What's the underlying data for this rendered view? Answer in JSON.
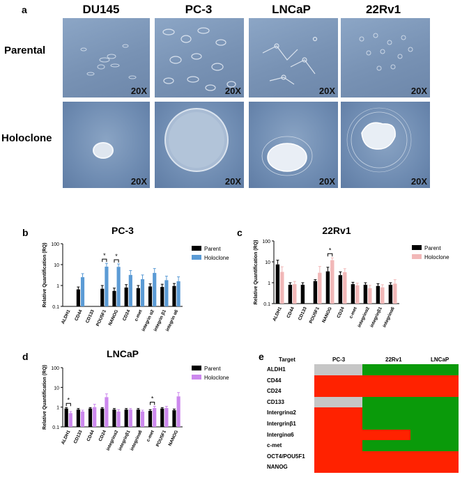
{
  "panel_a": {
    "letter": "a",
    "columns": [
      "DU145",
      "PC-3",
      "LNCaP",
      "22Rv1"
    ],
    "rows": [
      "Parental",
      "Holoclone"
    ],
    "magnification": "20X"
  },
  "panel_b": {
    "letter": "b"
  },
  "panel_c": {
    "letter": "c"
  },
  "panel_d": {
    "letter": "d"
  },
  "panel_e": {
    "letter": "e",
    "header": [
      "Target",
      "PC-3",
      "22Rv1",
      "LNCaP"
    ],
    "colors": {
      "red": "#ff2200",
      "green": "#0a9a0a",
      "gray": "#c6c6c6"
    },
    "rows": [
      {
        "label": "ALDH1",
        "cells": [
          "gray",
          "green",
          "green"
        ]
      },
      {
        "label": "CD44",
        "cells": [
          "red",
          "red",
          "red"
        ]
      },
      {
        "label": "CD24",
        "cells": [
          "red",
          "red",
          "red"
        ]
      },
      {
        "label": "CD133",
        "cells": [
          "gray",
          "green",
          "green"
        ]
      },
      {
        "label": "Intergrinα2",
        "cells": [
          "red",
          "green",
          "green"
        ]
      },
      {
        "label": "Intergrinβ1",
        "cells": [
          "red",
          "green",
          "green"
        ]
      },
      {
        "label": "Interginα6",
        "cells": [
          "red",
          "red",
          "green"
        ]
      },
      {
        "label": "c-met",
        "cells": [
          "red",
          "green",
          "green"
        ]
      },
      {
        "label": "OCT4/POU5F1",
        "cells": [
          "red",
          "red",
          "red"
        ]
      },
      {
        "label": "NANOG",
        "cells": [
          "red",
          "red",
          "red"
        ]
      }
    ]
  },
  "chart_data": [
    {
      "type": "bar",
      "title": "PC-3",
      "ylabel": "Relative Quantification (RQ)",
      "yscale": "log",
      "ylim": [
        0.1,
        100
      ],
      "yticks": [
        "0.1",
        "1",
        "10",
        "100"
      ],
      "categories": [
        "ALDH1",
        "CD44",
        "CD133",
        "POU5F1",
        "NANOG",
        "CD24",
        "c-met",
        "integrin α2",
        "integrin β1",
        "integrin α6"
      ],
      "series": [
        {
          "name": "Parent",
          "color": "#000000",
          "values": [
            null,
            0.65,
            null,
            0.7,
            0.55,
            0.8,
            0.75,
            0.9,
            0.85,
            0.95
          ],
          "errors": [
            null,
            0.2,
            null,
            0.3,
            0.2,
            0.3,
            0.25,
            0.3,
            0.3,
            0.3
          ]
        },
        {
          "name": "Holoclone",
          "color": "#5b9bd5",
          "values": [
            null,
            2.5,
            null,
            8.0,
            7.8,
            3.2,
            2.0,
            4.0,
            1.8,
            1.6
          ],
          "errors": [
            null,
            1.2,
            null,
            3.5,
            3.0,
            2.0,
            1.2,
            2.5,
            1.0,
            1.0
          ]
        }
      ],
      "significance": [
        {
          "category": "POU5F1",
          "label": "*"
        },
        {
          "category": "NANOG",
          "label": "*"
        }
      ],
      "legend": "top-right"
    },
    {
      "type": "bar",
      "title": "22Rv1",
      "ylabel": "Relative Quantification (RQ)",
      "yscale": "log",
      "ylim": [
        0.1,
        100
      ],
      "yticks": [
        "0.1",
        "1",
        "10",
        "100"
      ],
      "categories": [
        "ALDH1",
        "CD44",
        "CD133",
        "POU5F1",
        "NANOG",
        "CD24",
        "c-met",
        "integrinα2",
        "integrinβ1",
        "integrinα6"
      ],
      "series": [
        {
          "name": "Parent",
          "color": "#000000",
          "values": [
            7.5,
            0.8,
            0.8,
            1.2,
            3.5,
            2.3,
            0.85,
            0.8,
            0.7,
            0.8
          ],
          "errors": [
            4.5,
            0.2,
            0.2,
            0.2,
            2.0,
            1.0,
            0.2,
            0.2,
            0.2,
            0.2
          ]
        },
        {
          "name": "Holoclone",
          "color": "#f2b8b8",
          "values": [
            3.3,
            0.85,
            null,
            3.0,
            12.0,
            3.2,
            0.75,
            0.55,
            0.6,
            0.9
          ],
          "errors": [
            2.5,
            0.3,
            null,
            3.0,
            3.5,
            1.5,
            0.2,
            0.2,
            0.2,
            0.5
          ]
        }
      ],
      "significance": [
        {
          "category": "NANOG",
          "label": "*"
        }
      ],
      "legend": "top-right"
    },
    {
      "type": "bar",
      "title": "LNCaP",
      "ylabel": "Relative Quantification (RQ)",
      "yscale": "log",
      "ylim": [
        0.1,
        100
      ],
      "yticks": [
        "0.1",
        "1",
        "10",
        "100"
      ],
      "categories": [
        "ALDH1",
        "CD133",
        "CD44",
        "CD24",
        "integrinα2",
        "integrinβ1",
        "integrinα6",
        "c-met",
        "POU5F1",
        "NANOG"
      ],
      "series": [
        {
          "name": "Parent",
          "color": "#000000",
          "values": [
            0.85,
            0.75,
            0.85,
            0.85,
            0.75,
            0.75,
            0.75,
            0.65,
            0.85,
            0.7
          ],
          "errors": [
            0.1,
            0.1,
            0.1,
            0.1,
            0.1,
            0.1,
            0.1,
            0.1,
            0.1,
            0.1
          ]
        },
        {
          "name": "Holoclone",
          "color": "#cc88ee",
          "values": [
            0.5,
            0.6,
            1.0,
            3.2,
            0.6,
            0.75,
            0.6,
            0.9,
            0.9,
            3.5
          ],
          "errors": [
            0.1,
            0.1,
            0.4,
            1.5,
            0.15,
            0.1,
            0.1,
            0.2,
            0.2,
            2.0
          ]
        }
      ],
      "significance": [
        {
          "category": "ALDH1",
          "label": "*"
        },
        {
          "category": "c-met",
          "label": "*"
        }
      ],
      "legend": "top-right"
    }
  ]
}
